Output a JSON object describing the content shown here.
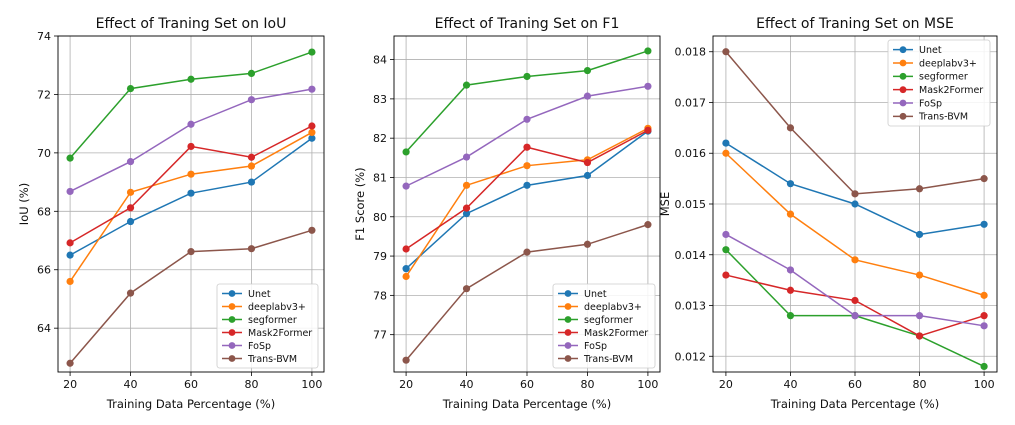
{
  "chart_data": [
    {
      "type": "line",
      "title": "Effect of Traning Set on IoU",
      "xlabel": "Training Data Percentage (%)",
      "ylabel": "IoU (%)",
      "x": [
        20,
        40,
        60,
        80,
        100
      ],
      "xlim": [
        16,
        104
      ],
      "ylim": [
        62.5,
        74
      ],
      "yticks": [
        64,
        66,
        68,
        70,
        72,
        74
      ],
      "ytick_decimals": 0,
      "grid": true,
      "legend_position": "lower-right",
      "series": [
        {
          "name": "Unet",
          "color": "#1f77b4",
          "values": [
            66.5,
            67.65,
            68.62,
            69.0,
            70.5
          ]
        },
        {
          "name": "deeplabv3+",
          "color": "#ff7f0e",
          "values": [
            65.6,
            68.65,
            69.27,
            69.55,
            70.7
          ]
        },
        {
          "name": "segformer",
          "color": "#2ca02c",
          "values": [
            69.82,
            72.2,
            72.52,
            72.72,
            73.45
          ]
        },
        {
          "name": "Mask2Former",
          "color": "#d62728",
          "values": [
            66.92,
            68.12,
            70.22,
            69.85,
            70.92
          ]
        },
        {
          "name": "FoSp",
          "color": "#9467bd",
          "values": [
            68.68,
            69.7,
            70.98,
            71.82,
            72.18
          ]
        },
        {
          "name": "Trans-BVM",
          "color": "#8c564b",
          "values": [
            62.8,
            65.2,
            66.62,
            66.72,
            67.35
          ]
        }
      ]
    },
    {
      "type": "line",
      "title": "Effect of Traning Set on F1",
      "xlabel": "Training Data Percentage (%)",
      "ylabel": "F1 Score (%)",
      "x": [
        20,
        40,
        60,
        80,
        100
      ],
      "xlim": [
        16,
        104
      ],
      "ylim": [
        76.05,
        84.6
      ],
      "yticks": [
        76,
        77,
        78,
        79,
        80,
        81,
        82,
        83,
        84
      ],
      "ytick_decimals": 0,
      "grid": true,
      "legend_position": "lower-right",
      "series": [
        {
          "name": "Unet",
          "color": "#1f77b4",
          "values": [
            78.68,
            80.08,
            80.8,
            81.05,
            82.18
          ]
        },
        {
          "name": "deeplabv3+",
          "color": "#ff7f0e",
          "values": [
            78.48,
            80.8,
            81.3,
            81.45,
            82.25
          ]
        },
        {
          "name": "segformer",
          "color": "#2ca02c",
          "values": [
            81.65,
            83.35,
            83.57,
            83.72,
            84.22
          ]
        },
        {
          "name": "Mask2Former",
          "color": "#d62728",
          "values": [
            79.18,
            80.22,
            81.77,
            81.38,
            82.2
          ]
        },
        {
          "name": "FoSp",
          "color": "#9467bd",
          "values": [
            80.78,
            81.52,
            82.48,
            83.07,
            83.32
          ]
        },
        {
          "name": "Trans-BVM",
          "color": "#8c564b",
          "values": [
            76.35,
            78.17,
            79.1,
            79.3,
            79.8
          ]
        }
      ]
    },
    {
      "type": "line",
      "title": "Effect of Traning Set on MSE",
      "xlabel": "Training Data Percentage (%)",
      "ylabel": "MSE",
      "x": [
        20,
        40,
        60,
        80,
        100
      ],
      "xlim": [
        16,
        104
      ],
      "ylim": [
        0.01169,
        0.01831
      ],
      "yticks": [
        0.012,
        0.013,
        0.014,
        0.015,
        0.016,
        0.017,
        0.018
      ],
      "ytick_decimals": 3,
      "grid": true,
      "legend_position": "upper-right",
      "series": [
        {
          "name": "Unet",
          "color": "#1f77b4",
          "values": [
            0.0162,
            0.0154,
            0.015,
            0.0144,
            0.0146
          ]
        },
        {
          "name": "deeplabv3+",
          "color": "#ff7f0e",
          "values": [
            0.016,
            0.0148,
            0.0139,
            0.0136,
            0.0132
          ]
        },
        {
          "name": "segformer",
          "color": "#2ca02c",
          "values": [
            0.0141,
            0.0128,
            0.0128,
            0.0124,
            0.0118
          ]
        },
        {
          "name": "Mask2Former",
          "color": "#d62728",
          "values": [
            0.0136,
            0.0133,
            0.0131,
            0.0124,
            0.0128
          ]
        },
        {
          "name": "FoSp",
          "color": "#9467bd",
          "values": [
            0.0144,
            0.0137,
            0.0128,
            0.0128,
            0.0126
          ]
        },
        {
          "name": "Trans-BVM",
          "color": "#8c564b",
          "values": [
            0.018,
            0.0165,
            0.0152,
            0.0153,
            0.0155
          ]
        }
      ]
    }
  ]
}
